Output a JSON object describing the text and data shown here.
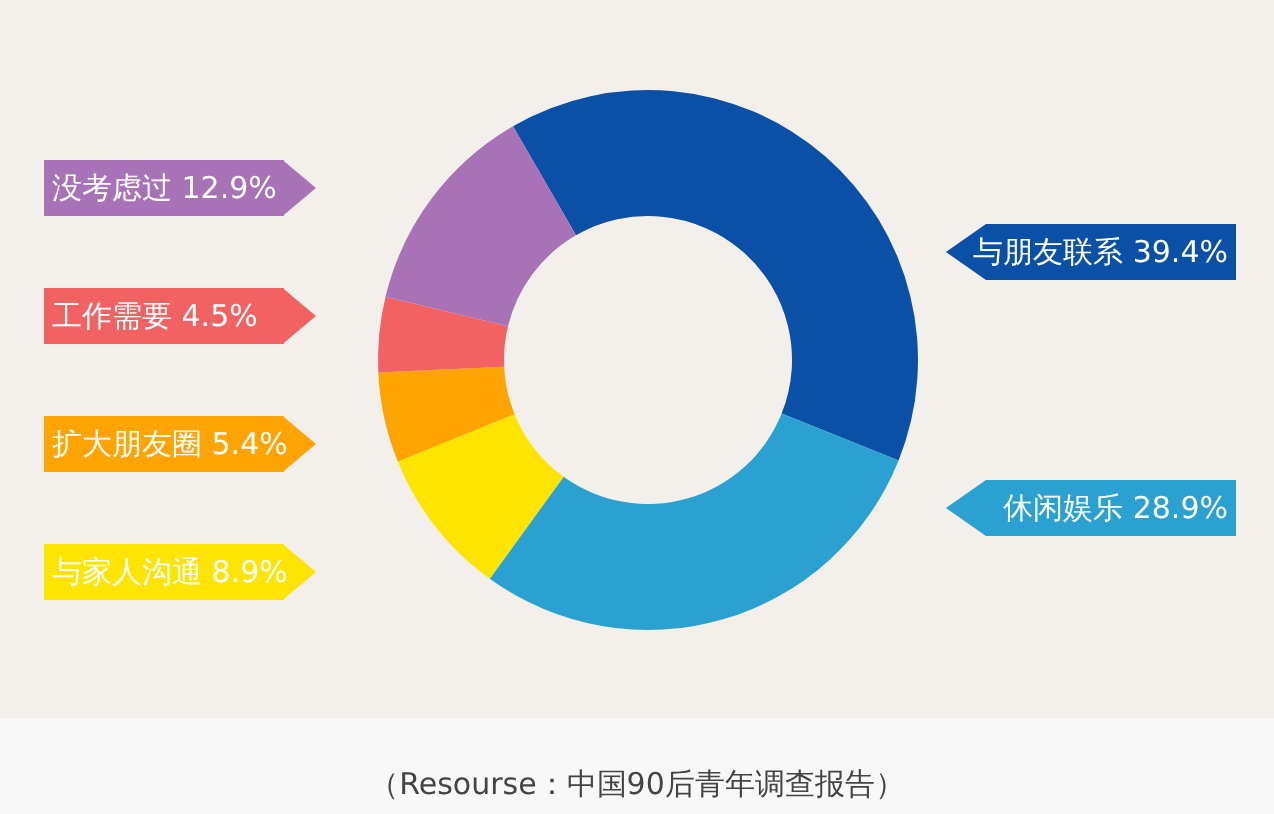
{
  "chart_data": {
    "type": "donut",
    "categories": [
      "与朋友联系",
      "休闲娱乐",
      "与家人沟通",
      "扩大朋友圈",
      "工作需要",
      "没考虑过"
    ],
    "values": [
      39.4,
      28.9,
      8.9,
      5.4,
      4.5,
      12.9
    ],
    "colors": [
      "#0b50a7",
      "#2aa1d1",
      "#ffe400",
      "#ffa400",
      "#f26262",
      "#a872b7"
    ],
    "value_labels": [
      "39.4%",
      "28.9%",
      "8.9%",
      "5.4%",
      "4.5%",
      "12.9%"
    ],
    "legend": "left",
    "annotations": [
      "（Resourse：中国90后青年调查报告）"
    ]
  }
}
